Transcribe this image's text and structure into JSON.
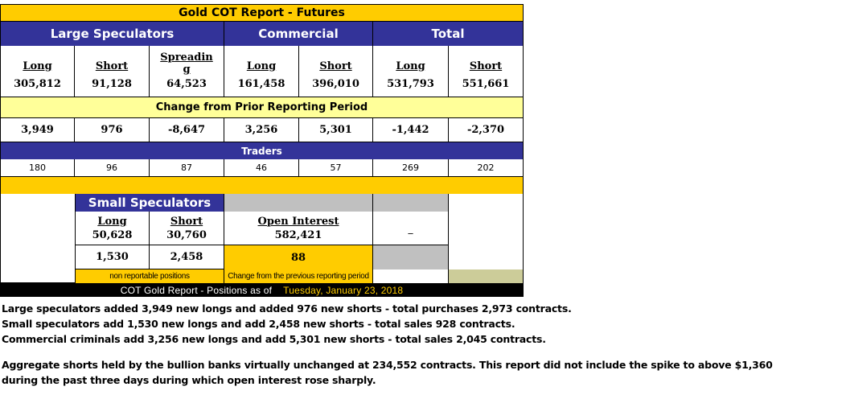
{
  "report": {
    "title": "Gold COT Report - Futures",
    "groups": {
      "large_speculators": "Large Speculators",
      "commercial": "Commercial",
      "total": "Total"
    },
    "columns": [
      {
        "label": "Long",
        "value": "305,812",
        "change": "3,949",
        "traders": "180"
      },
      {
        "label": "Short",
        "value": "91,128",
        "change": "976",
        "traders": "96"
      },
      {
        "label": "Spreading",
        "value": "64,523",
        "change": "-8,647",
        "traders": "87"
      },
      {
        "label": "Long",
        "value": "161,458",
        "change": "3,256",
        "traders": "46"
      },
      {
        "label": "Short",
        "value": "396,010",
        "change": "5,301",
        "traders": "57"
      },
      {
        "label": "Long",
        "value": "531,793",
        "change": "-1,442",
        "traders": "269"
      },
      {
        "label": "Short",
        "value": "551,661",
        "change": "-2,370",
        "traders": "202"
      }
    ],
    "change_header": "Change from Prior Reporting Period",
    "traders_header": "Traders",
    "small_speculators": {
      "title": "Small Speculators",
      "long_label": "Long",
      "long_value": "50,628",
      "short_label": "Short",
      "short_value": "30,760",
      "long_change": "1,530",
      "short_change": "2,458",
      "note": "non reportable positions"
    },
    "open_interest": {
      "label": "Open Interest",
      "value": "582,421",
      "change": "88",
      "note": "Change from the previous reporting period"
    },
    "dash": "_",
    "footer": {
      "label": "COT Gold Report - Positions as of",
      "date": "Tuesday, January 23, 2018",
      "date_color": "#ffcc00"
    }
  },
  "notes": [
    "Large speculators added 3,949 new longs and added 976 new shorts - total purchases 2,973 contracts.",
    "Small speculators add 1,530 new longs and add 2,458 new shorts - total sales 928 contracts.",
    "Commercial criminals add 3,256 new longs and add 5,301 new shorts - total sales 2,045 contracts."
  ],
  "notes2": "Aggregate shorts held by the bullion banks virtually unchanged at 234,552 contracts. This report did not include the spike to above $1,360 during the past three days during which open interest rose sharply.",
  "colors": {
    "gold": "#ffcc00",
    "navy": "#333399",
    "pale_yellow": "#ffff99",
    "grey": "#c0c0c0",
    "olive": "#cccc99"
  }
}
